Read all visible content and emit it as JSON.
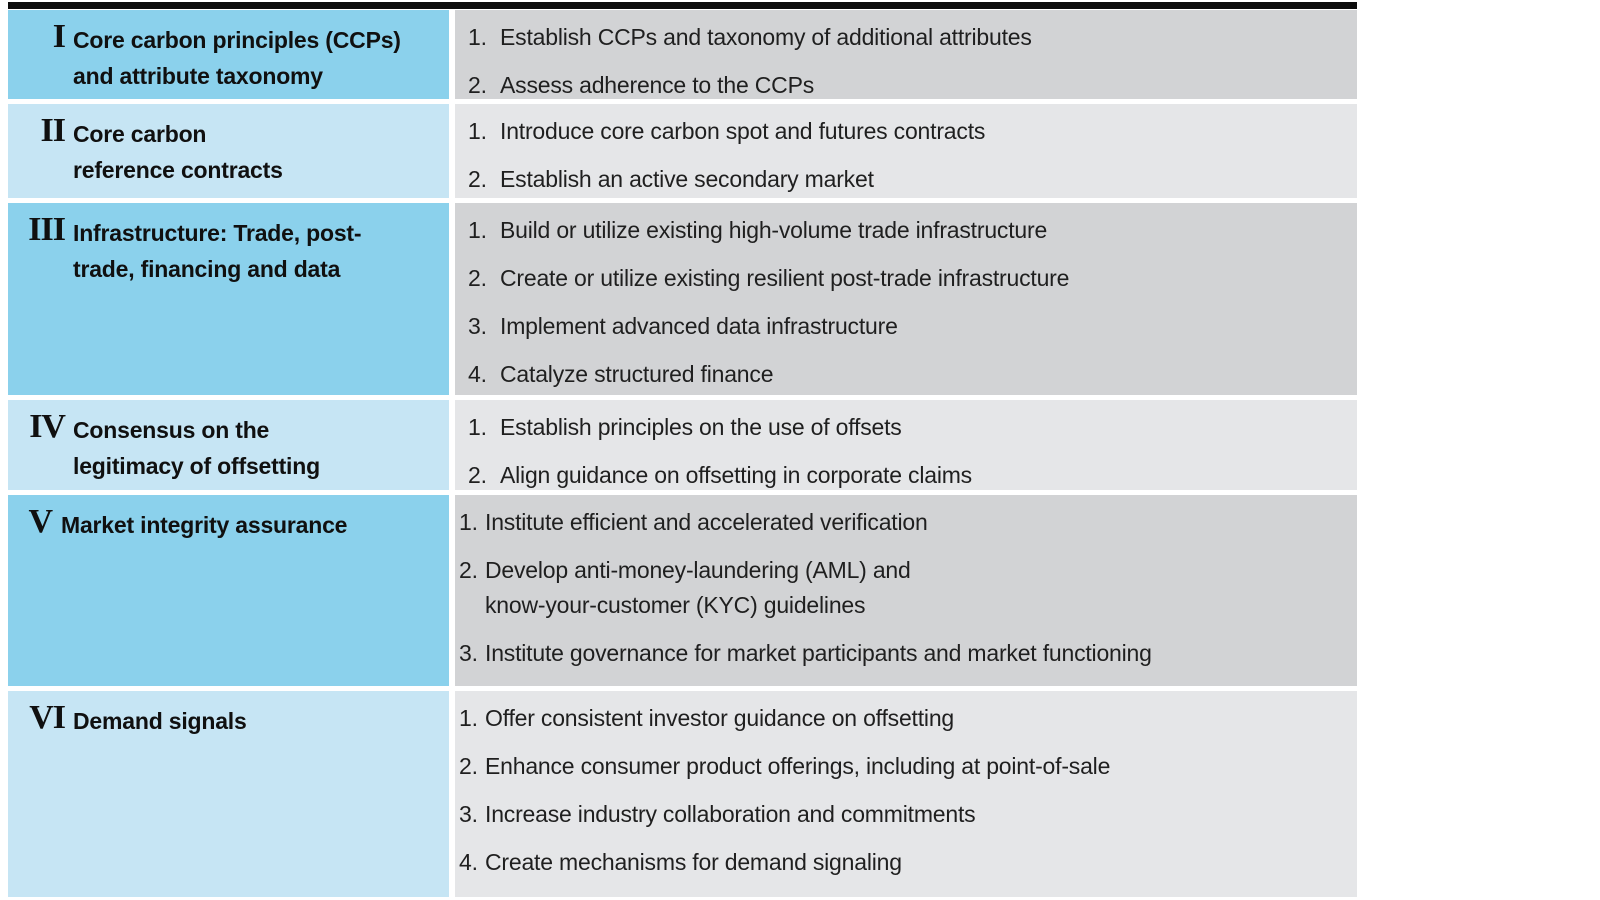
{
  "figure": {
    "colors": {
      "top_bar": "#0c0c0c",
      "category_dark_blue": "#8bd1ec",
      "category_light_blue": "#c6e5f4",
      "actions_dark_gray": "#d2d3d5",
      "actions_light_gray": "#e5e6e8",
      "text": "#1f1f1f"
    },
    "rows": [
      {
        "numeral": "I",
        "title": "Core carbon principles (CCPs)\nand attribute taxonomy",
        "items": [
          {
            "num": "1.",
            "text": "Establish CCPs and taxonomy of additional attributes"
          },
          {
            "num": "2.",
            "text": "Assess adherence to the CCPs"
          }
        ]
      },
      {
        "numeral": "II",
        "title": "Core carbon\nreference contracts",
        "items": [
          {
            "num": "1.",
            "text": "Introduce core carbon spot and futures contracts"
          },
          {
            "num": "2.",
            "text": "Establish an active secondary market"
          }
        ]
      },
      {
        "numeral": "III",
        "title": "Infrastructure: Trade, post-\ntrade, financing and data",
        "items": [
          {
            "num": "1.",
            "text": "Build or utilize existing high-volume trade infrastructure"
          },
          {
            "num": "2.",
            "text": "Create or utilize existing resilient post-trade infrastructure"
          },
          {
            "num": "3.",
            "text": "Implement advanced data infrastructure"
          },
          {
            "num": "4.",
            "text": "Catalyze structured finance"
          }
        ]
      },
      {
        "numeral": "IV",
        "title": "Consensus on the\nlegitimacy of offsetting",
        "items": [
          {
            "num": "1.",
            "text": "Establish principles on the use of offsets"
          },
          {
            "num": "2.",
            "text": "Align guidance on offsetting in corporate claims"
          }
        ]
      },
      {
        "numeral": "V",
        "title": "Market integrity assurance",
        "items": [
          {
            "num": "1.",
            "text": "Institute efficient and accelerated verification"
          },
          {
            "num": "2.",
            "text": "Develop anti-money-laundering (AML) and\nknow-your-customer (KYC) guidelines"
          },
          {
            "num": "3.",
            "text": "Institute governance for market participants and market functioning"
          }
        ]
      },
      {
        "numeral": "VI",
        "title": "Demand signals",
        "items": [
          {
            "num": "1.",
            "text": "Offer consistent investor guidance on offsetting"
          },
          {
            "num": "2.",
            "text": "Enhance consumer product offerings, including at point-of-sale"
          },
          {
            "num": "3.",
            "text": "Increase industry collaboration and commitments"
          },
          {
            "num": "4.",
            "text": "Create mechanisms for demand signaling"
          }
        ]
      }
    ]
  }
}
